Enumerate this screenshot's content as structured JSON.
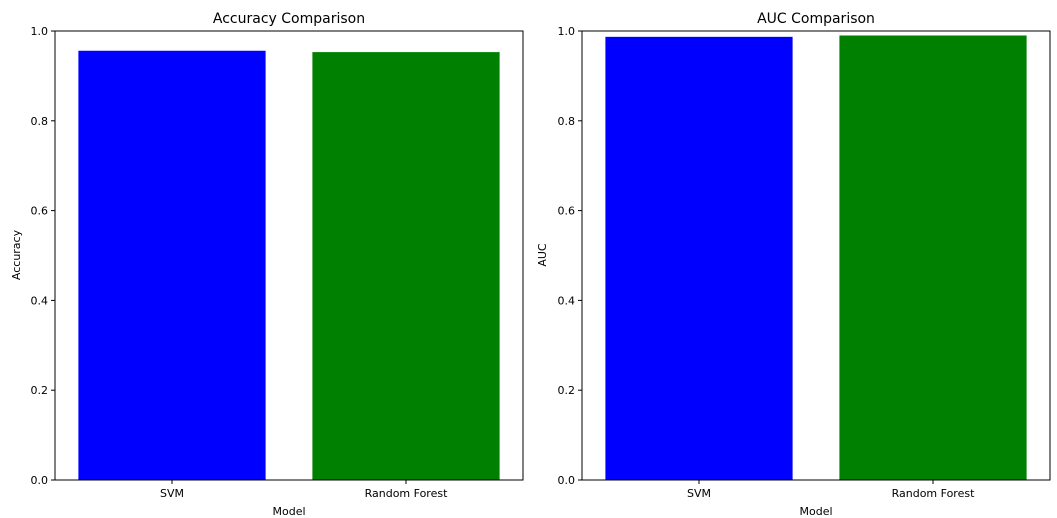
{
  "chart_data": [
    {
      "type": "bar",
      "title": "Accuracy Comparison",
      "xlabel": "Model",
      "ylabel": "Accuracy",
      "categories": [
        "SVM",
        "Random Forest"
      ],
      "values": [
        0.956,
        0.953
      ],
      "colors": [
        "#0000ff",
        "#008000"
      ],
      "ylim": [
        0,
        1.0
      ],
      "yticks": [
        "0.0",
        "0.2",
        "0.4",
        "0.6",
        "0.8",
        "1.0"
      ],
      "grid": false
    },
    {
      "type": "bar",
      "title": "AUC Comparison",
      "xlabel": "Model",
      "ylabel": "AUC",
      "categories": [
        "SVM",
        "Random Forest"
      ],
      "values": [
        0.987,
        0.99
      ],
      "colors": [
        "#0000ff",
        "#008000"
      ],
      "ylim": [
        0,
        1.0
      ],
      "yticks": [
        "0.0",
        "0.2",
        "0.4",
        "0.6",
        "0.8",
        "1.0"
      ],
      "grid": false
    }
  ]
}
